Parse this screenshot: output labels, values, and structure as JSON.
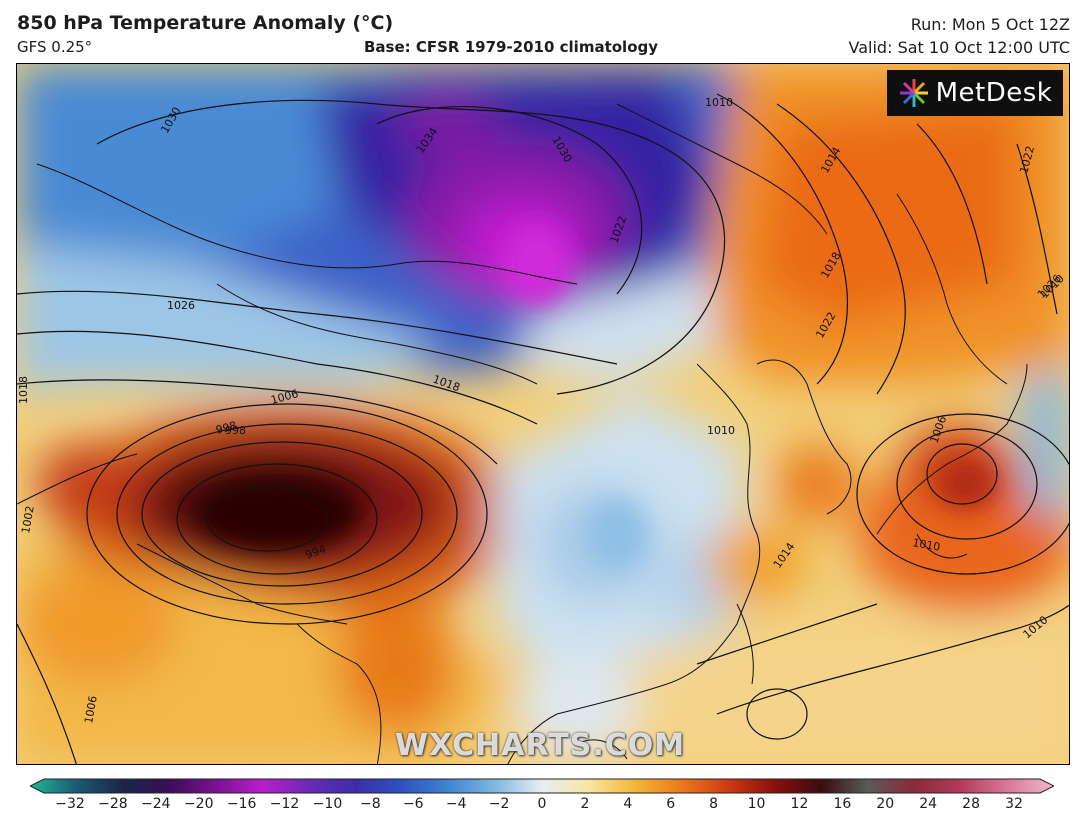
{
  "header": {
    "title": "850 hPa Temperature Anomaly (°C)",
    "model": "GFS 0.25°",
    "base": "Base: CFSR 1979-2010 climatology",
    "run": "Run: Mon 5 Oct 12Z",
    "valid": "Valid: Sat 10 Oct 12:00 UTC"
  },
  "logo": {
    "text": "MetDesk",
    "icon": "pinwheel-icon"
  },
  "watermark": "WXCHARTS.COM",
  "isobar_labels": [
    "1030",
    "1034",
    "1030",
    "1022",
    "1010",
    "1014",
    "1022",
    "1026",
    "1018",
    "1022",
    "1026",
    "1018",
    "1006",
    "998",
    "1006",
    "1010",
    "1018",
    "1014",
    "1010",
    "1010",
    "1006",
    "1010",
    "1002",
    "994",
    "998"
  ],
  "colorbar": {
    "ticks": [
      "−32",
      "−28",
      "−24",
      "−20",
      "−16",
      "−12",
      "−10",
      "−8",
      "−6",
      "−4",
      "−2",
      "0",
      "2",
      "4",
      "6",
      "8",
      "10",
      "12",
      "16",
      "20",
      "24",
      "28",
      "32"
    ],
    "colors": [
      "#1fb89a",
      "#1c5a72",
      "#1a2548",
      "#3a0e58",
      "#7a1290",
      "#b81fc8",
      "#6a2ab8",
      "#3a2ea8",
      "#2e52c0",
      "#3f86d0",
      "#7fb8e2",
      "#e8eef2",
      "#f8e6a0",
      "#f2b63a",
      "#ea7a1a",
      "#cc3a12",
      "#8a0f0f",
      "#3a0d0d",
      "#5a5a5a",
      "#8a2a3a",
      "#b23c5a",
      "#d8789a",
      "#f2b8cc"
    ]
  },
  "colors": {
    "cold_deep": "#c21bd0",
    "cold": "#2a3aa8",
    "neutral": "#e9eef3",
    "warm": "#f3a72e",
    "hot": "#3a0808"
  }
}
